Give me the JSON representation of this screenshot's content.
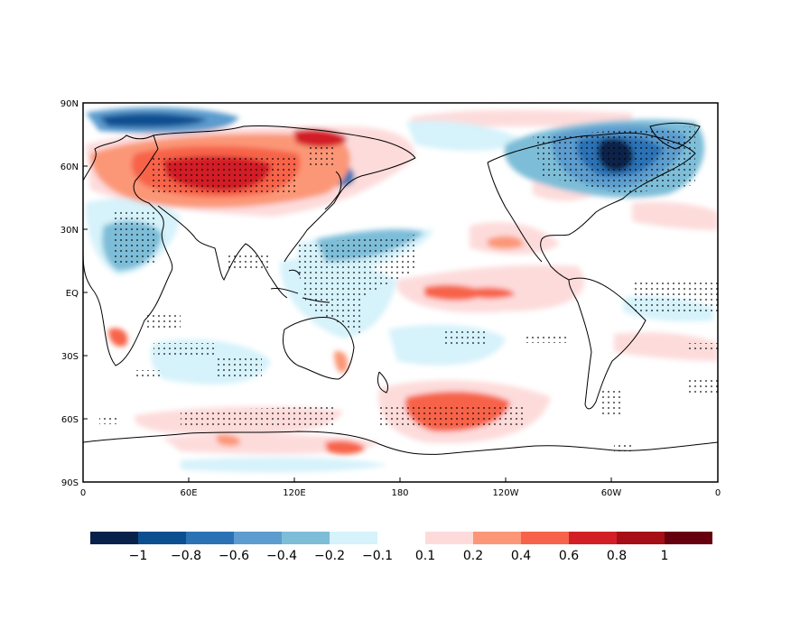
{
  "map": {
    "projection": "equirectangular",
    "lat_labels": [
      "90N",
      "60N",
      "30N",
      "EQ",
      "30S",
      "60S",
      "90S"
    ],
    "lon_labels": [
      "0",
      "60E",
      "120E",
      "180",
      "120W",
      "60W",
      "0"
    ],
    "stippling": "dots mark significant regions"
  },
  "colorbar": {
    "colors": [
      "#08214a",
      "#0b4f91",
      "#2b72b5",
      "#5c9cce",
      "#7dbdd8",
      "#d6f2fa",
      "#ffffff",
      "#fddbdb",
      "#fb9777",
      "#f7634a",
      "#d21f26",
      "#a50f15",
      "#67000d"
    ],
    "labels": [
      "−1",
      "−0.8",
      "−0.6",
      "−0.4",
      "−0.2",
      "−0.1",
      "0.1",
      "0.2",
      "0.4",
      "0.6",
      "0.8",
      "1"
    ]
  }
}
